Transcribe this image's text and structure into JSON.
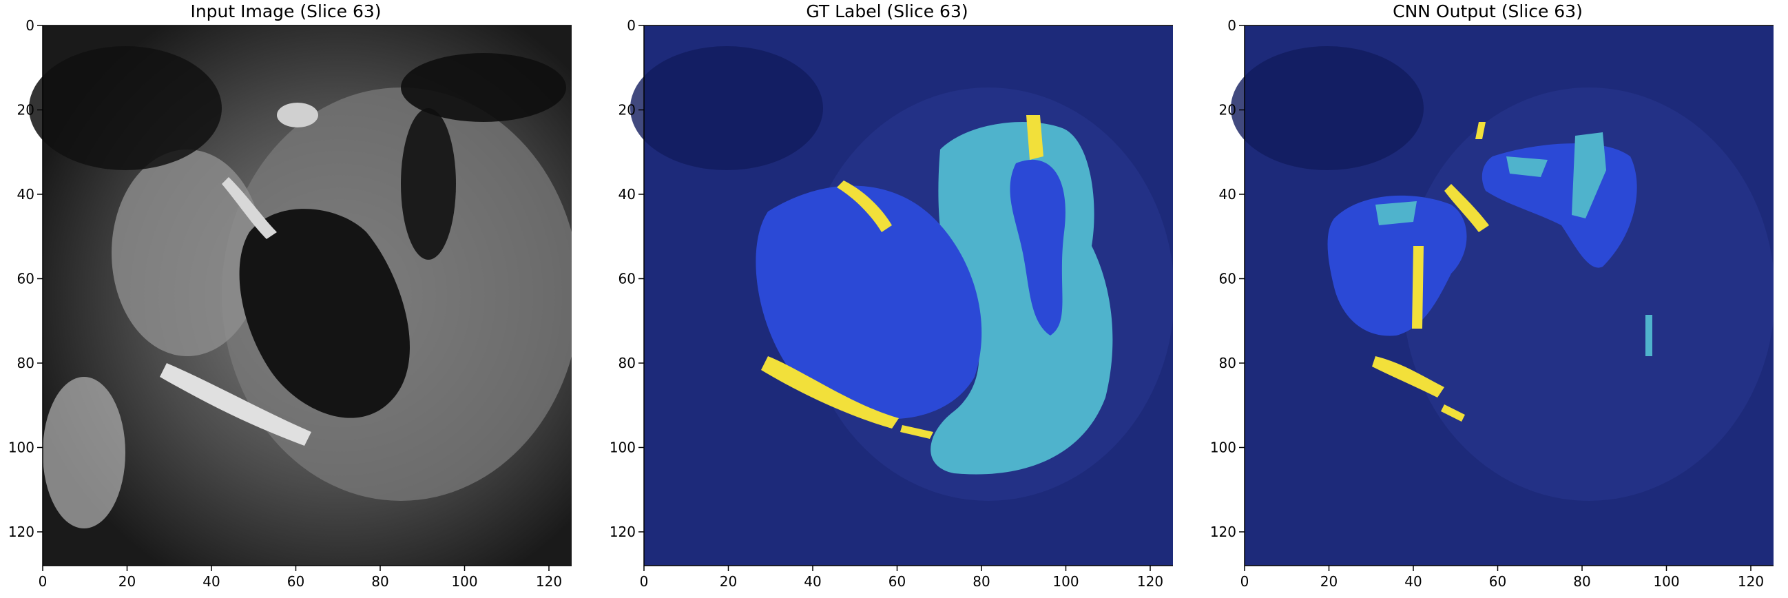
{
  "panels": [
    {
      "title": "Input Image (Slice 63)",
      "mode": "grayscale"
    },
    {
      "title": "GT Label (Slice 63)",
      "mode": "label"
    },
    {
      "title": "CNN Output (Slice 63)",
      "mode": "output"
    }
  ],
  "axes": {
    "x_ticks": [
      "0",
      "20",
      "40",
      "60",
      "80",
      "100",
      "120"
    ],
    "y_ticks": [
      "0",
      "20",
      "40",
      "60",
      "80",
      "100",
      "120"
    ],
    "xlim": [
      0,
      128
    ],
    "ylim": [
      0,
      128
    ]
  },
  "colors": {
    "overlay_background": "#1d2a7a",
    "class_blue": "#2b49d6",
    "class_cyan": "#4fb3cc",
    "class_yellow": "#f2e03a"
  }
}
